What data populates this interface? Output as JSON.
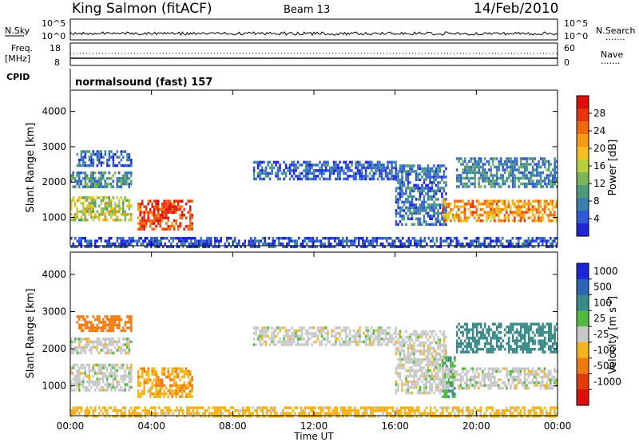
{
  "header": {
    "station": "King Salmon (fitACF)",
    "beam": "Beam 13",
    "date": "14/Feb/2010"
  },
  "status_panels": {
    "nsky_label": "N.Sky",
    "nsky_ticks": [
      "10^5",
      "10^0"
    ],
    "nsearch_label": "N.Search",
    "nsearch_ticks": [
      "10^5",
      "10^0"
    ],
    "freq_label": "Freq.",
    "freq_unit": "[MHz]",
    "freq_ticks": [
      "18",
      "8"
    ],
    "nave_label": "Nave",
    "nave_ticks": [
      "60",
      "0"
    ],
    "cpid_label": "CPID",
    "cpid_text": "normalsound (fast) 157",
    "legend_dots": "......."
  },
  "chart_data": [
    {
      "type": "heatmap",
      "name": "power",
      "ylabel": "Slant Range [km]",
      "xlabel": "Time UT",
      "xlim_hours": [
        0,
        24
      ],
      "ylim": [
        200,
        4600
      ],
      "y_ticks": [
        1000,
        2000,
        3000,
        4000
      ],
      "x_tick_labels": [
        "00:00",
        "04:00",
        "08:00",
        "12:00",
        "16:00",
        "20:00",
        "00:00"
      ],
      "colorbar": {
        "label": "Power [dB]",
        "range": [
          0,
          32
        ],
        "ticks": [
          4,
          8,
          12,
          16,
          20,
          24,
          28
        ],
        "colors": [
          "#1e24d8",
          "#2f5ad6",
          "#3b7fae",
          "#4c9c78",
          "#7ab65a",
          "#b9cf3c",
          "#f4c01f",
          "#f59a12",
          "#f06a0c",
          "#e8330a",
          "#e10c0c"
        ]
      },
      "regions": [
        {
          "t": [
            0.0,
            3.0
          ],
          "range_km": [
            900,
            1600
          ],
          "level": 16
        },
        {
          "t": [
            3.3,
            6.0
          ],
          "range_km": [
            700,
            1500
          ],
          "level": 27
        },
        {
          "t": [
            0.0,
            3.0
          ],
          "range_km": [
            1900,
            2300
          ],
          "level": 9
        },
        {
          "t": [
            0.3,
            3.0
          ],
          "range_km": [
            2500,
            2900
          ],
          "level": 6
        },
        {
          "t": [
            9.0,
            16.0
          ],
          "range_km": [
            2100,
            2600
          ],
          "level": 5
        },
        {
          "t": [
            16.0,
            18.5
          ],
          "range_km": [
            800,
            2500
          ],
          "level": 6
        },
        {
          "t": [
            18.3,
            24.0
          ],
          "range_km": [
            900,
            1500
          ],
          "level": 22
        },
        {
          "t": [
            19.0,
            24.0
          ],
          "range_km": [
            1900,
            2700
          ],
          "level": 8
        },
        {
          "t": [
            0.0,
            24.0
          ],
          "range_km": [
            200,
            450
          ],
          "level": 4
        }
      ]
    },
    {
      "type": "heatmap",
      "name": "velocity",
      "ylabel": "Slant Range [km]",
      "xlabel": "Time UT",
      "xlim_hours": [
        0,
        24
      ],
      "ylim": [
        200,
        4600
      ],
      "y_ticks": [
        1000,
        2000,
        3000,
        4000
      ],
      "x_tick_labels": [
        "00:00",
        "04:00",
        "08:00",
        "12:00",
        "16:00",
        "20:00",
        "00:00"
      ],
      "colorbar": {
        "label": "Velocity [m s",
        "label_sup": "-1",
        "label_end": "]",
        "tick_labels": [
          "1000",
          "500",
          "100",
          "25",
          "-25",
          "-100",
          "-500",
          "-1000"
        ],
        "colors": [
          "#1e24d8",
          "#2c64b8",
          "#3a8a8a",
          "#4fba3e",
          "#c8c8c8",
          "#f5b31a",
          "#f07a10",
          "#e33a0c",
          "#e10c0c"
        ]
      },
      "regions": [
        {
          "t": [
            0.0,
            3.0
          ],
          "range_km": [
            900,
            1600
          ],
          "value": 0
        },
        {
          "t": [
            3.3,
            6.0
          ],
          "range_km": [
            700,
            1500
          ],
          "value": -90
        },
        {
          "t": [
            0.0,
            3.0
          ],
          "range_km": [
            1900,
            2300
          ],
          "value": 0
        },
        {
          "t": [
            0.3,
            3.0
          ],
          "range_km": [
            2500,
            2900
          ],
          "value": -300
        },
        {
          "t": [
            9.0,
            16.0
          ],
          "range_km": [
            2100,
            2600
          ],
          "value": 0
        },
        {
          "t": [
            16.0,
            18.5
          ],
          "range_km": [
            800,
            2500
          ],
          "value": 0
        },
        {
          "t": [
            18.3,
            18.9
          ],
          "range_km": [
            700,
            1800
          ],
          "value": 100
        },
        {
          "t": [
            18.3,
            24.0
          ],
          "range_km": [
            900,
            1500
          ],
          "value": 0
        },
        {
          "t": [
            19.0,
            24.0
          ],
          "range_km": [
            1900,
            2700
          ],
          "value": 200
        },
        {
          "t": [
            0.0,
            24.0
          ],
          "range_km": [
            200,
            450
          ],
          "value": -50
        }
      ]
    }
  ]
}
